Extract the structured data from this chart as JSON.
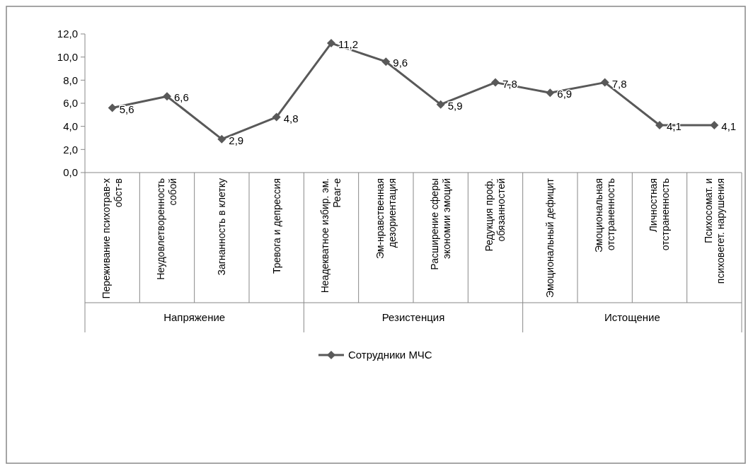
{
  "chart_data": {
    "type": "line",
    "categories": [
      "Переживание психотрав-х обст-в",
      "Неудовлетворенность собой",
      "Загнанность в клетку",
      "Тревога и депрессия",
      "Неадекватное избир. эм. Реаг-е",
      "Эм-нравственная дезориентация",
      "Расширение сферы экономии эмоций",
      "Редукция проф. обязанностей",
      "Эмоциональный дефицит",
      "Эмоциональная отстраненность",
      "Личностная отстраненность",
      "Психосомат. и психовегет. нарушения"
    ],
    "series": [
      {
        "name": "Сотрудники МЧС",
        "color": "#595959",
        "values": [
          5.6,
          6.6,
          2.9,
          4.8,
          11.2,
          9.6,
          5.9,
          7.8,
          6.9,
          7.8,
          4.1,
          4.1
        ],
        "value_labels": [
          "5,6",
          "6,6",
          "2,9",
          "4,8",
          "11,2",
          "9,6",
          "5,9",
          "7,8",
          "6,9",
          "7,8",
          "4,1",
          "4,1"
        ]
      }
    ],
    "annotations": [
      "Напряжение",
      "Резистенция",
      "Истощение"
    ],
    "ylim": [
      0,
      12
    ],
    "yticks": [
      {
        "value": 0,
        "label": "0,0"
      },
      {
        "value": 2,
        "label": "2,0"
      },
      {
        "value": 4,
        "label": "4,0"
      },
      {
        "value": 6,
        "label": "6,0"
      },
      {
        "value": 8,
        "label": "8,0"
      },
      {
        "value": 10,
        "label": "10,0"
      },
      {
        "value": 12,
        "label": "12,0"
      }
    ],
    "grid": false,
    "legend": "bottom",
    "marker": "diamond",
    "line_style": "solid"
  }
}
